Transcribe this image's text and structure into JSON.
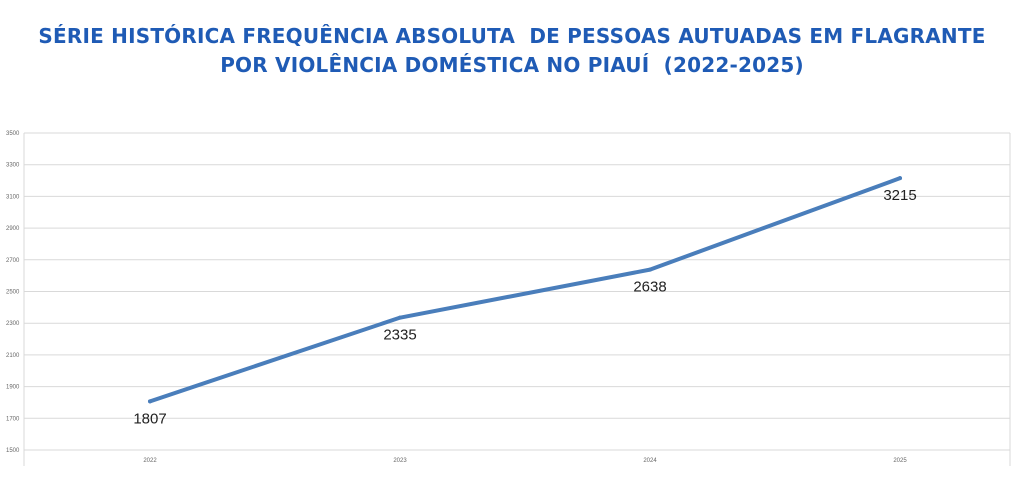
{
  "header": {
    "title_line1": "SÉRIE HISTÓRICA FREQUÊNCIA ABSOLUTA  DE PESSOAS AUTUADAS EM FLAGRANTE",
    "title_line2": "POR VIOLÊNCIA DOMÉSTICA NO PIAUÍ  (2022-2025)"
  },
  "chart_data": {
    "type": "line",
    "title": "SÉRIE HISTÓRICA FREQUÊNCIA ABSOLUTA  DE PESSOAS AUTUADAS EM FLAGRANTE POR VIOLÊNCIA DOMÉSTICA NO PIAUÍ  (2022-2025)",
    "categories": [
      "2022",
      "2023",
      "2024",
      "2025"
    ],
    "series": [
      {
        "values": [
          1807,
          2335,
          2638,
          3215
        ],
        "color": "#4a7ebb"
      }
    ],
    "data_labels": [
      "1807",
      "2335",
      "2638",
      "3215"
    ],
    "xlabel": "",
    "ylabel": "",
    "ylim": [
      1500,
      3500
    ],
    "yticks": [
      1500,
      1700,
      1900,
      2100,
      2300,
      2500,
      2700,
      2900,
      3100,
      3300,
      3500
    ],
    "grid": true,
    "legend": "none",
    "gridline_color": "#d9d9d9"
  }
}
